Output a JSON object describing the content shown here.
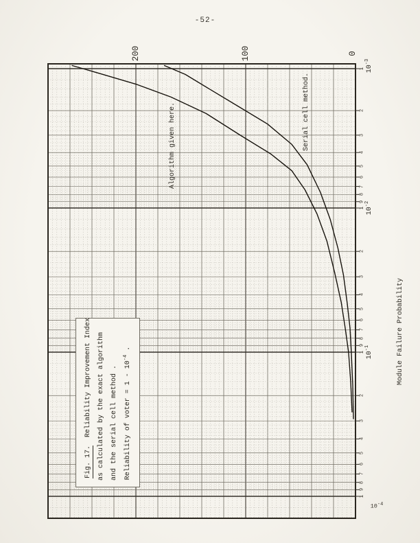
{
  "page": {
    "number": "-52-"
  },
  "caption": {
    "fig_label": "Fig. 17.",
    "line1_rest": "  Reliability Improvement Index",
    "line2": "as calculated by the exact algorithm",
    "line3": "and the serial cell method .",
    "line4_pre": "Reliability of voter = 1 - 10",
    "line4_sup": "-4",
    "line4_post": " ."
  },
  "colors": {
    "paper": "#f6f4ee",
    "ink": "#29261f"
  },
  "chart_data": {
    "type": "line",
    "title": "Reliability Improvement Index vs Module Failure Probability (figure printed rotated 90° on the page)",
    "x_axis": {
      "label": "Module Failure Probability",
      "scale": "log",
      "range": [
        0.001,
        1.4
      ],
      "decade_ticks": [
        {
          "base": "10",
          "exp": "-3"
        },
        {
          "base": "10",
          "exp": "-2"
        },
        {
          "base": "10",
          "exp": "-1"
        }
      ],
      "corner_label": {
        "base": "10",
        "exp": "-4"
      },
      "minor_tick_digits": [
        1,
        2,
        3,
        4,
        5,
        6,
        7,
        8,
        9
      ]
    },
    "y_axis": {
      "label": "Reliability Improvement Index",
      "scale": "linear",
      "range": [
        0,
        280
      ],
      "ticks": [
        0,
        100,
        200
      ]
    },
    "grid": "dense engineering semilog grid, dotted minors",
    "annotations": {
      "algorithm": "Algorithm given here.",
      "serial": "Serial cell method."
    },
    "series": [
      {
        "name": "Exact algorithm (given here)",
        "points": [
          [
            0.00095,
            258
          ],
          [
            0.0011,
            230
          ],
          [
            0.0013,
            199
          ],
          [
            0.0016,
            168
          ],
          [
            0.0021,
            136
          ],
          [
            0.003,
            105
          ],
          [
            0.0041,
            77
          ],
          [
            0.0054,
            58
          ],
          [
            0.0074,
            46
          ],
          [
            0.011,
            35
          ],
          [
            0.017,
            26
          ],
          [
            0.028,
            19
          ],
          [
            0.045,
            13
          ],
          [
            0.068,
            9.4
          ],
          [
            0.1,
            6.3
          ],
          [
            0.16,
            4.4
          ],
          [
            0.26,
            3.1
          ]
        ]
      },
      {
        "name": "Serial cell method",
        "points": [
          [
            0.00095,
            174
          ],
          [
            0.0011,
            155
          ],
          [
            0.0014,
            133
          ],
          [
            0.0019,
            105
          ],
          [
            0.0025,
            80
          ],
          [
            0.0035,
            58
          ],
          [
            0.0049,
            44
          ],
          [
            0.0077,
            32
          ],
          [
            0.012,
            23
          ],
          [
            0.019,
            16
          ],
          [
            0.029,
            11
          ],
          [
            0.046,
            7.5
          ],
          [
            0.068,
            5.0
          ],
          [
            0.1,
            3.8
          ],
          [
            0.17,
            2.5
          ],
          [
            0.29,
            1.9
          ]
        ]
      }
    ]
  }
}
